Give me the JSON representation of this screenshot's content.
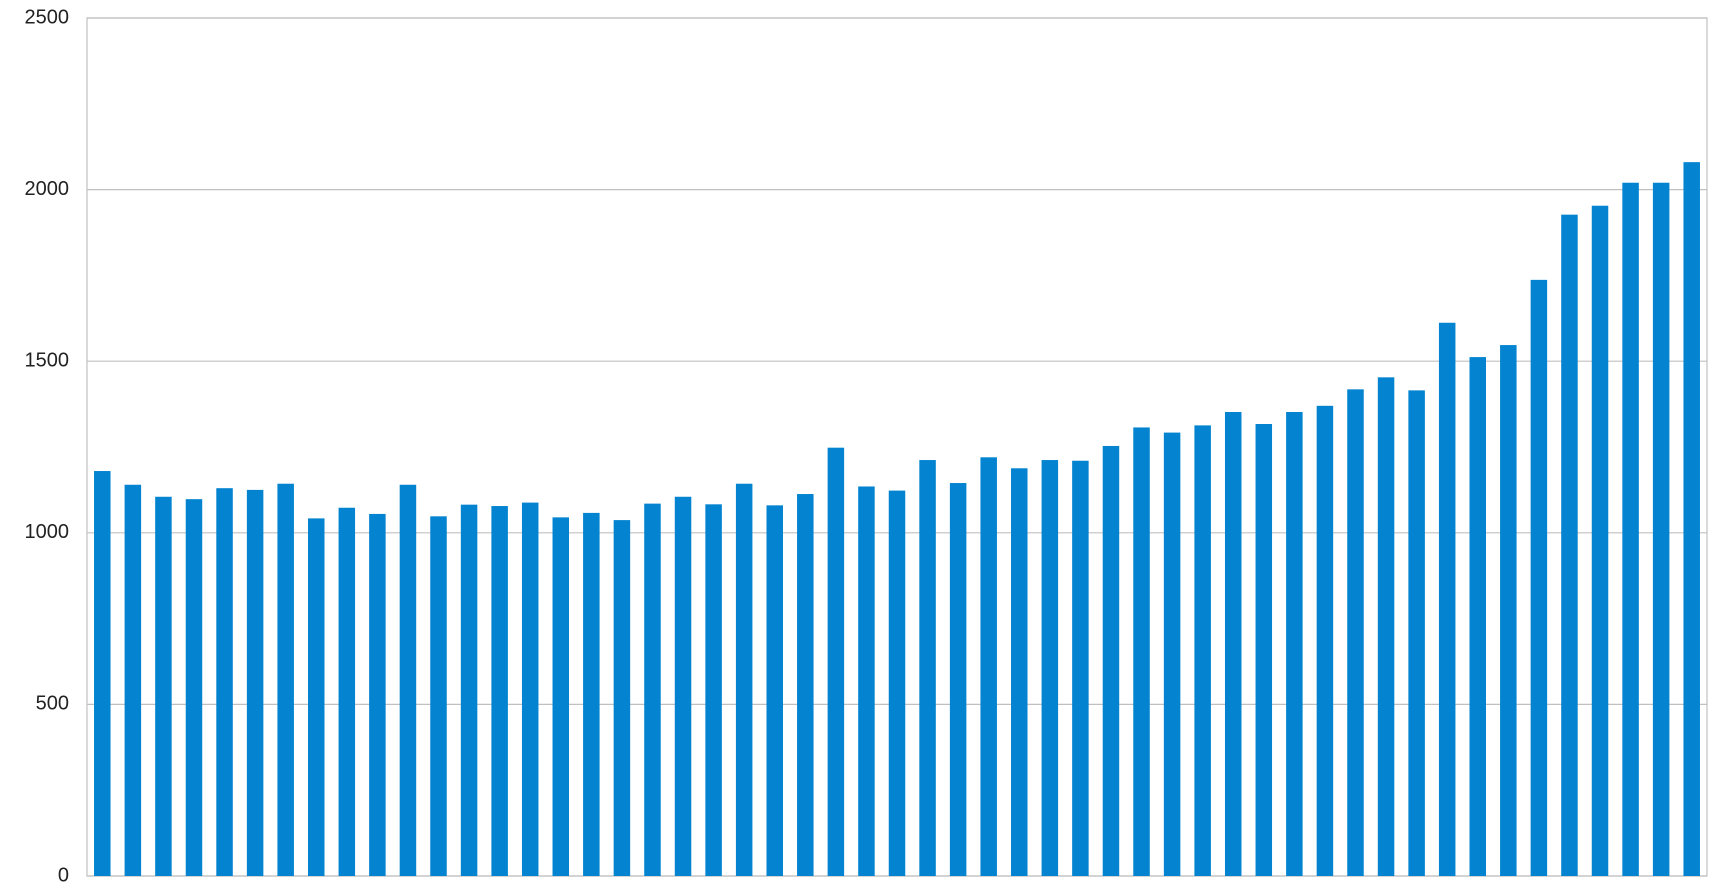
{
  "chart_data": {
    "type": "bar",
    "categories": [
      null,
      null,
      null,
      null,
      null,
      null,
      null,
      null,
      null,
      null,
      null,
      null,
      null,
      null,
      null,
      null,
      null,
      null,
      null,
      null,
      null,
      null,
      null,
      null,
      null,
      null,
      null,
      null,
      null,
      null,
      null,
      null,
      null,
      null,
      null,
      null,
      null,
      null,
      null,
      null,
      null,
      null,
      null,
      null,
      null,
      null,
      null,
      null,
      null,
      null,
      null,
      null,
      null
    ],
    "values": [
      1180,
      1140,
      1105,
      1098,
      1130,
      1125,
      1143,
      1042,
      1073,
      1055,
      1140,
      1048,
      1082,
      1078,
      1088,
      1045,
      1058,
      1037,
      1085,
      1105,
      1083,
      1143,
      1080,
      1113,
      1248,
      1135,
      1123,
      1212,
      1145,
      1220,
      1188,
      1212,
      1210,
      1253,
      1307,
      1292,
      1313,
      1352,
      1317,
      1352,
      1370,
      1418,
      1453,
      1415,
      1612,
      1512,
      1547,
      1737,
      1927,
      1953,
      2020,
      2020,
      2080
    ],
    "color": "#0484d0",
    "ylim": [
      0,
      2500
    ],
    "yticks": [
      0,
      500,
      1000,
      1500,
      2000,
      2500
    ],
    "grid": true
  }
}
